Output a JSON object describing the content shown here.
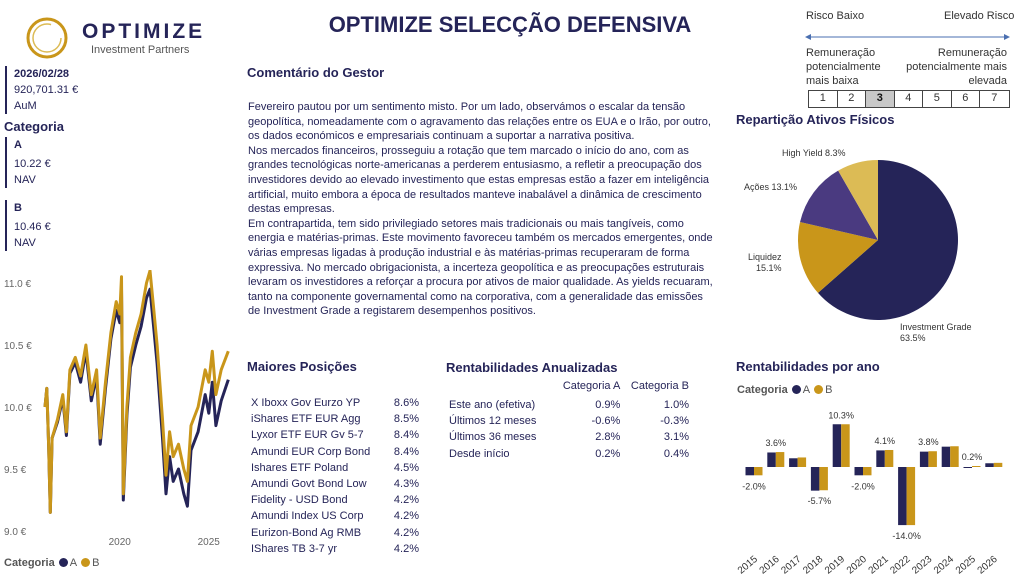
{
  "header": {
    "logo_name": "OPTIMIZE",
    "logo_sub": "Investment Partners",
    "title": "OPTIMIZE SELECÇÃO DEFENSIVA"
  },
  "aum": {
    "date": "2026/02/28",
    "value": "920,701.31 €",
    "label": "AuM"
  },
  "categoria": {
    "title": "Categoria",
    "items": [
      {
        "name": "A",
        "nav": "10.22 €",
        "label": "NAV"
      },
      {
        "name": "B",
        "nav": "10.46 €",
        "label": "NAV"
      }
    ]
  },
  "comment": {
    "title": "Comentário do Gestor",
    "paragraphs": [
      "Fevereiro pautou por um sentimento misto. Por um lado, observámos o escalar da tensão geopolítica, nomeadamente com o agravamento das relações entre os EUA e o Irão, por outro, os dados económicos e empresariais continuam a suportar a narrativa positiva.",
      "Nos mercados financeiros, prosseguiu a rotação que tem marcado o início do ano, com as grandes tecnológicas norte-americanas a perderem entusiasmo, a refletir a preocupação dos investidores devido ao elevado investimento que estas empresas estão a fazer em inteligência artificial, muito embora a época de resultados manteve inabalável a dinâmica de crescimento destas empresas.",
      "Em contrapartida, tem sido privilegiado setores mais tradicionais ou mais tangíveis, como energia e matérias-primas. Este movimento favoreceu também os mercados emergentes, onde várias empresas ligadas à produção industrial e às matérias-primas recuperaram de forma expressiva. No mercado obrigacionista, a incerteza geopolítica e as preocupações estruturais levaram os investidores a reforçar a procura por ativos de maior qualidade. As yields recuaram, tanto na componente governamental como na corporativa, com a generalidade das emissões de Investment Grade a registarem desempenhos positivos."
    ]
  },
  "risk": {
    "low": "Risco Baixo",
    "high": "Elevado Risco",
    "low_desc": "Remuneração potencialmente mais baixa",
    "high_desc": "Remuneração potencialmente mais elevada",
    "levels": [
      "1",
      "2",
      "3",
      "4",
      "5",
      "6",
      "7"
    ],
    "selected": 3
  },
  "positions": {
    "title": "Maiores Posições",
    "items": [
      {
        "name": "X Iboxx Gov Eurzo YP",
        "pct": "8.6%"
      },
      {
        "name": "iShares ETF EUR Agg",
        "pct": "8.5%"
      },
      {
        "name": "Lyxor ETF EUR Gv 5-7",
        "pct": "8.4%"
      },
      {
        "name": "Amundi EUR Corp Bond",
        "pct": "8.4%"
      },
      {
        "name": "Ishares ETF Poland",
        "pct": "4.5%"
      },
      {
        "name": "Amundi Govt Bond Low",
        "pct": "4.3%"
      },
      {
        "name": "Fidelity - USD Bond",
        "pct": "4.2%"
      },
      {
        "name": "Amundi Index US Corp",
        "pct": "4.2%"
      },
      {
        "name": "Eurizon-Bond Ag RMB",
        "pct": "4.2%"
      },
      {
        "name": "IShares TB 3-7 yr",
        "pct": "4.2%"
      }
    ]
  },
  "annualized": {
    "title": "Rentabilidades Anualizadas",
    "headers": [
      "Categoria A",
      "Categoria B"
    ],
    "rows": [
      {
        "label": "Este ano (efetiva)",
        "a": "0.9%",
        "b": "1.0%"
      },
      {
        "label": "Últimos 12 meses",
        "a": "-0.6%",
        "b": "-0.3%"
      },
      {
        "label": "Últimos 36 meses",
        "a": "2.8%",
        "b": "3.1%"
      },
      {
        "label": "Desde início",
        "a": "0.2%",
        "b": "0.4%"
      }
    ]
  },
  "colors": {
    "A": "#252458",
    "B": "#c9961a",
    "acoes": "#4a3a80",
    "hy": "#dcbb55",
    "text": "#252458"
  },
  "chart_data": [
    {
      "type": "line",
      "title": "",
      "legend_title": "Categoria",
      "legend": [
        "A",
        "B"
      ],
      "ylim": [
        9.0,
        11.0
      ],
      "yticks": [
        "9.0 €",
        "9.5 €",
        "10.0 €",
        "10.5 €",
        "11.0 €"
      ],
      "ytick_values": [
        9.0,
        9.5,
        10.0,
        10.5,
        11.0
      ],
      "xticks": [
        "2020",
        "2025"
      ],
      "xtick_values": [
        2020,
        2025
      ],
      "xlim": [
        2015.6,
        2026.4
      ],
      "x": [
        2015.8,
        2015.9,
        2016.0,
        2016.1,
        2016.2,
        2016.5,
        2016.8,
        2017.0,
        2017.2,
        2017.5,
        2017.8,
        2018.1,
        2018.4,
        2018.7,
        2018.9,
        2019.2,
        2019.5,
        2019.8,
        2020.0,
        2020.1,
        2020.2,
        2020.4,
        2020.6,
        2020.9,
        2021.2,
        2021.5,
        2021.7,
        2021.9,
        2022.1,
        2022.4,
        2022.6,
        2022.8,
        2023.0,
        2023.3,
        2023.6,
        2023.8,
        2024.0,
        2024.4,
        2024.8,
        2025.0,
        2025.2,
        2025.4,
        2025.7,
        2026.1
      ],
      "series": [
        {
          "name": "A",
          "values": [
            10.0,
            10.15,
            9.7,
            9.15,
            9.75,
            9.88,
            10.07,
            9.77,
            10.27,
            10.36,
            10.2,
            10.45,
            10.05,
            10.25,
            9.7,
            10.15,
            10.55,
            10.78,
            10.68,
            10.95,
            9.25,
            9.93,
            10.32,
            10.5,
            10.65,
            10.88,
            10.95,
            10.65,
            10.35,
            9.75,
            9.3,
            9.6,
            9.4,
            9.5,
            9.3,
            9.2,
            9.65,
            9.8,
            10.1,
            9.95,
            10.2,
            9.85,
            10.05,
            10.22
          ]
        },
        {
          "name": "B",
          "values": [
            10.0,
            10.15,
            9.7,
            9.15,
            9.75,
            9.9,
            10.1,
            9.8,
            10.3,
            10.4,
            10.25,
            10.5,
            10.1,
            10.3,
            9.75,
            10.2,
            10.6,
            10.85,
            10.75,
            11.05,
            9.3,
            10.0,
            10.4,
            10.6,
            10.75,
            11.0,
            11.1,
            10.8,
            10.5,
            9.9,
            9.45,
            9.8,
            9.6,
            9.7,
            9.5,
            9.4,
            9.85,
            10.0,
            10.3,
            10.2,
            10.45,
            10.1,
            10.3,
            10.45
          ]
        }
      ]
    },
    {
      "type": "pie",
      "title": "Repartição Ativos Físicos",
      "slices": [
        {
          "label": "Investment Grade",
          "value": 63.5,
          "text": "63.5%"
        },
        {
          "label": "Liquidez",
          "value": 15.1,
          "text": "15.1%"
        },
        {
          "label": "Ações",
          "value": 13.1,
          "text": "13.1%"
        },
        {
          "label": "High Yield",
          "value": 8.3,
          "text": "8.3%"
        }
      ]
    },
    {
      "type": "bar",
      "title": "Rentabilidades por ano",
      "legend_title": "Categoria",
      "legend": [
        "A",
        "B"
      ],
      "categories": [
        "2015",
        "2016",
        "2017",
        "2018",
        "2019",
        "2020",
        "2021",
        "2022",
        "2023",
        "2024",
        "2025",
        "2026"
      ],
      "series": [
        {
          "name": "A",
          "values": [
            -2.0,
            3.5,
            2.1,
            -5.7,
            10.3,
            -2.0,
            4.0,
            -14.0,
            3.7,
            4.9,
            -0.1,
            0.9
          ]
        },
        {
          "name": "B",
          "values": [
            -2.0,
            3.6,
            2.3,
            -5.6,
            10.3,
            -2.0,
            4.1,
            -14.0,
            3.8,
            5.0,
            0.2,
            1.0
          ]
        }
      ],
      "data_labels": [
        "-2.0%",
        "3.6%",
        "",
        "-5.7%",
        "10.3%",
        "-2.0%",
        "4.1%",
        "-14.0%",
        "3.8%",
        "",
        "0.2%",
        ""
      ]
    }
  ]
}
